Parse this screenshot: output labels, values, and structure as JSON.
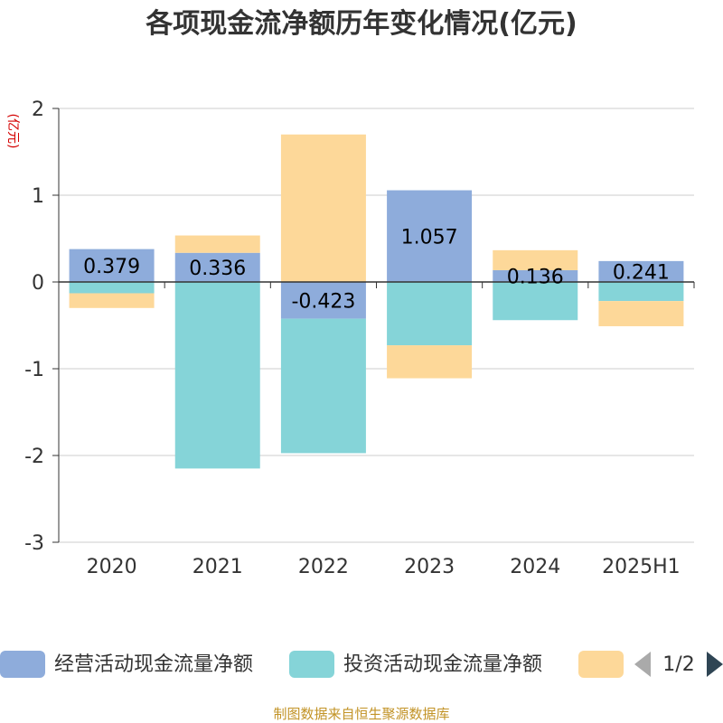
{
  "colors": {
    "operating": "#8eacdb",
    "investing": "#85d4d8",
    "financing": "#fdd899",
    "axis": "#333333",
    "grid": "#cccccc",
    "pager_active": "#2f4554",
    "pager_inactive": "#aaaaaa"
  },
  "pager": {
    "text": "1/2",
    "prev_icon": "triangle-left-icon",
    "next_icon": "triangle-right-icon"
  },
  "source": "制图数据来自恒生聚源数据库",
  "chart_data": {
    "type": "bar",
    "stacked": true,
    "title": "各项现金流净额历年变化情况(亿元)",
    "ylabel": "(亿元)",
    "xlabel": "",
    "ylim": [
      -3,
      2
    ],
    "yticks": [
      "2",
      "1",
      "0",
      "-1",
      "-2",
      "-3"
    ],
    "grid": true,
    "legend_position": "bottom",
    "categories": [
      "2020",
      "2021",
      "2022",
      "2023",
      "2024",
      "2025H1"
    ],
    "series": [
      {
        "name": "经营活动现金流量净额",
        "color_key": "operating",
        "values": [
          0.379,
          0.336,
          -0.423,
          1.057,
          0.136,
          0.241
        ],
        "labels": [
          "0.379",
          "0.336",
          "-0.423",
          "1.057",
          "0.136",
          "0.241"
        ]
      },
      {
        "name": "投资活动现金流量净额",
        "color_key": "investing",
        "values": [
          -0.13,
          -2.15,
          -1.55,
          -0.73,
          -0.44,
          -0.22
        ],
        "labels": []
      },
      {
        "name": "",
        "color_key": "financing",
        "values": [
          -0.17,
          0.2,
          1.7,
          -0.38,
          0.23,
          -0.29
        ],
        "labels": []
      }
    ]
  }
}
